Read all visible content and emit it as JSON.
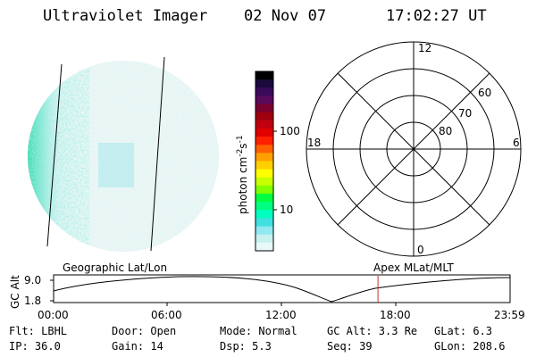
{
  "header": {
    "title": "Ultraviolet Imager",
    "date": "02 Nov 07",
    "time": "17:02:27 UT"
  },
  "colorbar": {
    "label": "photon cm",
    "label_sup1": "-2",
    "label_mid": "s",
    "label_sup2": "-1",
    "ticks": [
      "100",
      "10"
    ],
    "colors": [
      "#000000",
      "#1a0a3c",
      "#3a0a5a",
      "#5a0a5a",
      "#7a0030",
      "#a00010",
      "#c00010",
      "#e00000",
      "#ff2000",
      "#ff6000",
      "#ffa000",
      "#ffd000",
      "#ffff00",
      "#c8ff00",
      "#80ff00",
      "#00ff40",
      "#00ff80",
      "#00ffc0",
      "#40e0e0",
      "#90e8f0",
      "#c8f0f0",
      "#e8f8f8"
    ]
  },
  "polar_plot": {
    "mlt_labels": [
      "12",
      "18",
      "6",
      "0"
    ],
    "lat_labels": [
      "60",
      "70",
      "80"
    ]
  },
  "timeline": {
    "ylabel": "GC Alt",
    "yticks": [
      "9.0",
      "1.8"
    ],
    "left_label": "Geographic Lat/Lon",
    "right_label": "Apex MLat/MLT",
    "xticks": [
      "00:00",
      "06:00",
      "12:00",
      "18:00",
      "23:59"
    ],
    "current_time_hours": 17.04
  },
  "info": {
    "filter": "Flt: LBHL",
    "ip": "IP: 36.0",
    "door": "Door: Open",
    "gain": "Gain: 14",
    "mode": "Mode: Normal",
    "dsp": "Dsp:    5.3",
    "gc_alt": "GC Alt: 3.3 Re",
    "seq": "Seq: 39",
    "glat": "GLat:    6.3",
    "glon": "GLon: 208.6"
  }
}
